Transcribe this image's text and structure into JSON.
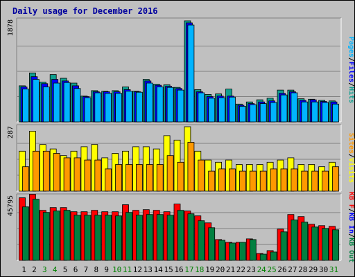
{
  "title": "Daily usage for December 2016",
  "colors": {
    "background": "#c0c0c0",
    "grid": "#808080",
    "title": "#00009e",
    "pages": "#0f9f8f",
    "files": "#0000ff",
    "hits": "#00b4ff",
    "visits": "#ffff00",
    "sites": "#ff9900",
    "kbin": "#ff0000",
    "kbout": "#008040",
    "weekday_label": "#000000",
    "weekend_label": "#008000"
  },
  "chart_data": [
    {
      "type": "bar",
      "panel": "hits",
      "ymax_label": "1878",
      "ylim": [
        0,
        1878
      ],
      "right_labels": [
        {
          "text": "Pages",
          "color": "#00b4ff"
        },
        {
          "text": "/",
          "color": "#000000"
        },
        {
          "text": "Files",
          "color": "#0000ff"
        },
        {
          "text": "/",
          "color": "#000000"
        },
        {
          "text": "Hits",
          "color": "#0f9f8f"
        }
      ],
      "categories": [
        "1",
        "2",
        "3",
        "4",
        "5",
        "6",
        "7",
        "8",
        "9",
        "10",
        "11",
        "12",
        "13",
        "14",
        "15",
        "16",
        "17",
        "18",
        "19",
        "20",
        "21",
        "22",
        "23",
        "24",
        "25",
        "26",
        "27",
        "28",
        "29",
        "30",
        "31"
      ],
      "series": [
        {
          "name": "Hits",
          "color": "#0f9f8f",
          "values": [
            670,
            910,
            740,
            880,
            810,
            720,
            480,
            580,
            570,
            580,
            650,
            570,
            790,
            700,
            690,
            640,
            1878,
            600,
            510,
            520,
            610,
            330,
            370,
            410,
            440,
            590,
            590,
            430,
            420,
            400,
            390
          ]
        },
        {
          "name": "Files",
          "color": "#0000ff",
          "values": [
            650,
            840,
            710,
            790,
            760,
            670,
            470,
            560,
            560,
            560,
            600,
            560,
            760,
            680,
            660,
            620,
            1840,
            560,
            470,
            480,
            480,
            310,
            340,
            370,
            390,
            530,
            560,
            400,
            410,
            380,
            370
          ]
        },
        {
          "name": "Pages",
          "color": "#00b4ff",
          "values": [
            610,
            790,
            650,
            720,
            730,
            620,
            450,
            540,
            530,
            530,
            570,
            550,
            720,
            650,
            640,
            590,
            1800,
            540,
            440,
            450,
            460,
            290,
            320,
            340,
            360,
            500,
            540,
            370,
            370,
            360,
            330
          ]
        }
      ]
    },
    {
      "type": "bar",
      "panel": "visits",
      "ymax_label": "287",
      "ylim": [
        0,
        287
      ],
      "right_labels": [
        {
          "text": "Sites",
          "color": "#ff9900"
        },
        {
          "text": "/",
          "color": "#000000"
        },
        {
          "text": "Visits",
          "color": "#ffff00"
        }
      ],
      "categories": [
        "1",
        "2",
        "3",
        "4",
        "5",
        "6",
        "7",
        "8",
        "9",
        "10",
        "11",
        "12",
        "13",
        "14",
        "15",
        "16",
        "17",
        "18",
        "19",
        "20",
        "21",
        "22",
        "23",
        "24",
        "25",
        "26",
        "27",
        "28",
        "29",
        "30",
        "31"
      ],
      "series": [
        {
          "name": "Visits",
          "color": "#ffff00",
          "values": [
            180,
            270,
            210,
            190,
            160,
            180,
            200,
            210,
            150,
            170,
            180,
            200,
            200,
            190,
            250,
            230,
            290,
            180,
            140,
            130,
            140,
            120,
            120,
            120,
            130,
            140,
            150,
            120,
            120,
            110,
            130
          ]
        },
        {
          "name": "Sites",
          "color": "#ff9900",
          "values": [
            110,
            180,
            180,
            170,
            150,
            150,
            140,
            140,
            100,
            120,
            120,
            120,
            120,
            120,
            160,
            130,
            220,
            140,
            90,
            100,
            100,
            90,
            90,
            90,
            100,
            100,
            100,
            90,
            90,
            90,
            110
          ]
        }
      ]
    },
    {
      "type": "bar",
      "panel": "kbytes",
      "ymax_label": "45795",
      "ylim": [
        0,
        45795
      ],
      "right_labels": [
        {
          "text": "KB F",
          "color": "#ff0000"
        },
        {
          "text": "/",
          "color": "#000000"
        },
        {
          "text": "KB In",
          "color": "#0000ff"
        },
        {
          "text": "/",
          "color": "#000000"
        },
        {
          "text": "KB Out",
          "color": "#008040"
        }
      ],
      "categories": [
        "1",
        "2",
        "3",
        "4",
        "5",
        "6",
        "7",
        "8",
        "9",
        "10",
        "11",
        "12",
        "13",
        "14",
        "15",
        "16",
        "17",
        "18",
        "19",
        "20",
        "21",
        "22",
        "23",
        "24",
        "25",
        "26",
        "27",
        "28",
        "29",
        "30",
        "31"
      ],
      "series": [
        {
          "name": "KB F",
          "color": "#ff0000",
          "values": [
            45000,
            47500,
            36000,
            38000,
            38000,
            35000,
            35000,
            36000,
            35000,
            35000,
            40000,
            36000,
            36500,
            36000,
            35000,
            40500,
            35500,
            32000,
            27000,
            15000,
            13000,
            13000,
            15500,
            5000,
            7000,
            22500,
            33000,
            31500,
            26000,
            25000,
            24500
          ]
        },
        {
          "name": "KB Out",
          "color": "#008040",
          "values": [
            38500,
            44000,
            34500,
            35500,
            36000,
            32500,
            32500,
            32500,
            32500,
            32000,
            34500,
            32500,
            33000,
            33000,
            32500,
            36000,
            33500,
            28500,
            23500,
            14500,
            12500,
            13000,
            15000,
            4500,
            6000,
            20500,
            29000,
            27500,
            24000,
            23000,
            22000
          ]
        }
      ]
    }
  ]
}
